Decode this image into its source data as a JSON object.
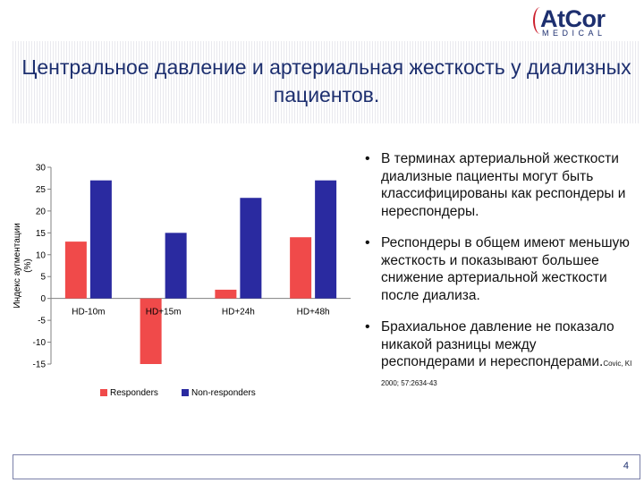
{
  "logo": {
    "main": "AtCor",
    "sub": "MEDICAL"
  },
  "title": "Центральное давление и артериальная жесткость у диализных пациентов.",
  "bullets": [
    {
      "text": "В терминах артериальной жесткости диализные пациенты могут быть классифицированы как респондеры и нереспондеры."
    },
    {
      "text": "Респондеры в общем имеют меньшую жесткость и показывают большее снижение артериальной жесткости после диализа."
    },
    {
      "text": "Брахиальное давление не показало никакой разницы между респондерами и нереспондерами.",
      "citation": "Covic, KI 2000; 57:2634-43"
    }
  ],
  "footer": {
    "page": "4"
  },
  "colors": {
    "title": "#1d2f6f",
    "responders": "#f04a4a",
    "non_responders": "#2a2aa0"
  },
  "chart_data": {
    "type": "bar",
    "categories": [
      "HD-10m",
      "HD+15m",
      "HD+24h",
      "HD+48h"
    ],
    "series": [
      {
        "name": "Responders",
        "color": "#f04a4a",
        "values": [
          13,
          -15,
          2,
          14
        ]
      },
      {
        "name": "Non-responders",
        "color": "#2a2aa0",
        "values": [
          27,
          15,
          23,
          27
        ]
      }
    ],
    "ylabel": "Индекс аугментации (%)",
    "ylim": [
      -15,
      30
    ],
    "yticks": [
      30,
      25,
      20,
      15,
      10,
      5,
      0,
      -5,
      -10,
      -15
    ],
    "grid": false,
    "legend": "bottom"
  }
}
